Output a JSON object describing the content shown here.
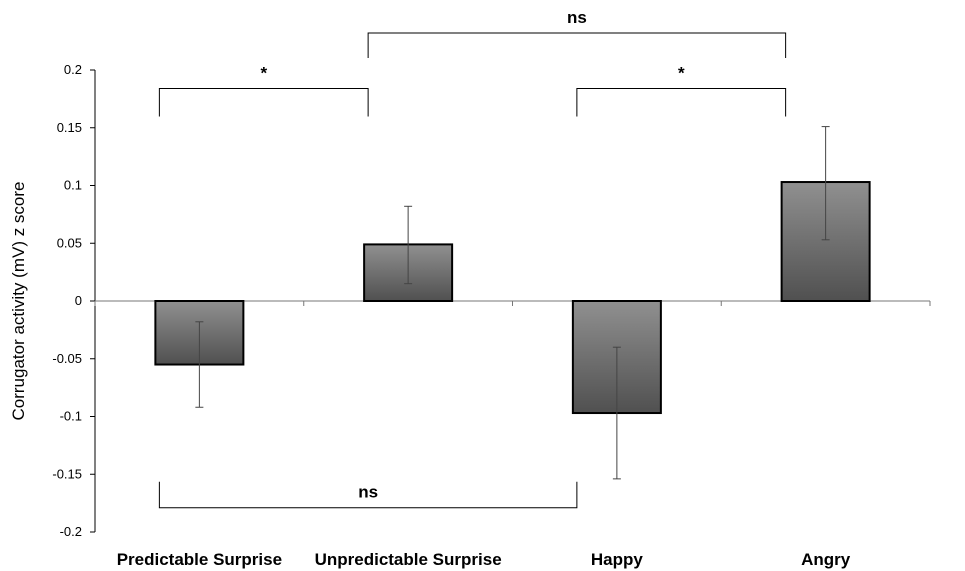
{
  "chart_data": {
    "type": "bar",
    "categories": [
      "Predictable Surprise",
      "Unpredictable Surprise",
      "Happy",
      "Angry"
    ],
    "values": [
      -0.055,
      0.049,
      -0.097,
      0.103
    ],
    "error_low": [
      -0.092,
      0.015,
      -0.154,
      0.053
    ],
    "error_high": [
      -0.018,
      0.082,
      -0.04,
      0.151
    ],
    "ylabel": "Corrugator activity (mV) z score",
    "ylim": [
      -0.2,
      0.2
    ],
    "yticks": [
      0.2,
      0.15,
      0.1,
      0.05,
      0,
      -0.05,
      -0.1,
      -0.15,
      -0.2
    ],
    "ytick_labels": [
      "0.2",
      "0.15",
      "0.1",
      "0.05",
      "0",
      "-0.05",
      "-0.1",
      "-0.15",
      "-0.2"
    ],
    "grid": false,
    "legend": "none",
    "bar_fill_top": "#909090",
    "bar_fill_bottom": "#505050",
    "annotations": [
      {
        "from": 0,
        "to": 1,
        "label": "*",
        "position": "above",
        "y": 0.184
      },
      {
        "from": 2,
        "to": 3,
        "label": "*",
        "position": "above",
        "y": 0.184
      },
      {
        "from": 1,
        "to": 3,
        "label": "ns",
        "position": "above",
        "y": 0.232
      },
      {
        "from": 0,
        "to": 2,
        "label": "ns",
        "position": "below",
        "y": -0.179
      }
    ]
  }
}
